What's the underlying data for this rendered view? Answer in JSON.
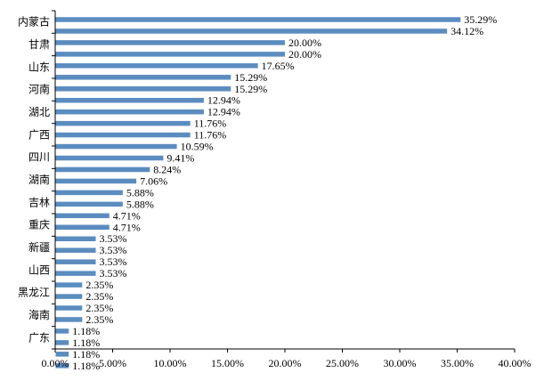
{
  "chart_data": {
    "type": "bar",
    "orientation": "horizontal",
    "title": "",
    "xlabel": "",
    "ylabel": "",
    "xlim": [
      0,
      40
    ],
    "ticks": [
      "0.00%",
      "5.00%",
      "10.00%",
      "15.00%",
      "20.00%",
      "25.00%",
      "30.00%",
      "35.00%",
      "40.00%"
    ],
    "grid": false,
    "bar_color": "#5b8cc0",
    "category_labels": [
      "内蒙古",
      "甘肃",
      "山东",
      "河南",
      "湖北",
      "广西",
      "四川",
      "湖南",
      "吉林",
      "重庆",
      "新疆",
      "山西",
      "黑龙江",
      "海南",
      "广东"
    ],
    "values": [
      35.29,
      34.12,
      20.0,
      20.0,
      17.65,
      15.29,
      15.29,
      12.94,
      12.94,
      11.76,
      11.76,
      10.59,
      9.41,
      8.24,
      7.06,
      5.88,
      5.88,
      4.71,
      4.71,
      3.53,
      3.53,
      3.53,
      3.53,
      2.35,
      2.35,
      2.35,
      2.35,
      1.18,
      1.18,
      1.18,
      1.18
    ],
    "value_labels": [
      "35.29%",
      "34.12%",
      "20.00%",
      "20.00%",
      "17.65%",
      "15.29%",
      "15.29%",
      "12.94%",
      "12.94%",
      "11.76%",
      "11.76%",
      "10.59%",
      "9.41%",
      "8.24%",
      "7.06%",
      "5.88%",
      "5.88%",
      "4.71%",
      "4.71%",
      "3.53%",
      "3.53%",
      "3.53%",
      "3.53%",
      "2.35%",
      "2.35%",
      "2.35%",
      "2.35%",
      "1.18%",
      "1.18%",
      "1.18%",
      "1.18%"
    ]
  }
}
